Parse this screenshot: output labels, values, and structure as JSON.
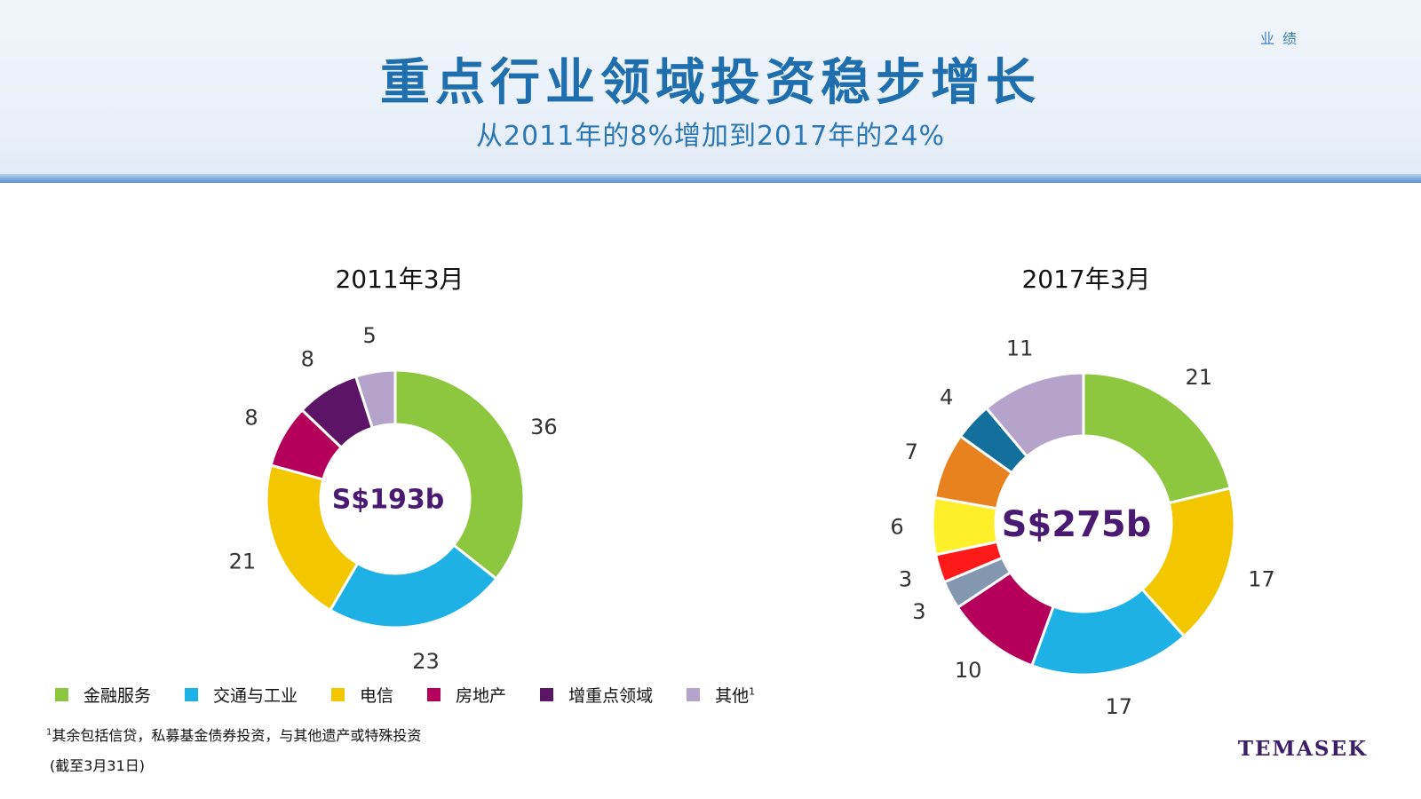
{
  "header": {
    "section_tag": "业 绩",
    "title": "重点行业领域投资稳步增长",
    "subtitle": "从2011年的8%增加到2017年的24%"
  },
  "chart_data": [
    {
      "type": "pie",
      "title": "2011年3月",
      "center_label": "S$193b",
      "categories": [
        "金融服务",
        "交通与工业",
        "电信",
        "房地产",
        "增重点领域",
        "其他"
      ],
      "values": [
        36,
        23,
        21,
        8,
        8,
        5
      ],
      "colors": [
        "#8dc63f",
        "#1eb1e6",
        "#f2c700",
        "#b5005b",
        "#5c1467",
        "#b5a3cb"
      ]
    },
    {
      "type": "pie",
      "title": "2017年3月",
      "center_label": "S$275b",
      "values": [
        21,
        17,
        17,
        10,
        3,
        3,
        6,
        7,
        4,
        11
      ],
      "colors": [
        "#8dc63f",
        "#f2c700",
        "#1eb1e6",
        "#b5005b",
        "#8497b0",
        "#ff1a1a",
        "#ffef2a",
        "#e8821e",
        "#13709d",
        "#b5a3cb"
      ]
    }
  ],
  "legend": [
    {
      "label": "金融服务",
      "color": "#8dc63f",
      "sup": ""
    },
    {
      "label": "交通与工业",
      "color": "#1eb1e6",
      "sup": ""
    },
    {
      "label": "电信",
      "color": "#f2c700",
      "sup": ""
    },
    {
      "label": "房地产",
      "color": "#b5005b",
      "sup": ""
    },
    {
      "label": "增重点领域",
      "color": "#5c1467",
      "sup": ""
    },
    {
      "label": "其他",
      "color": "#b5a3cb",
      "sup": "1"
    }
  ],
  "footnote": {
    "marker": "1",
    "text": "其余包括信贷，私募基金债券投资，与其他遗产或特殊投资"
  },
  "date_note": "(截至3月31日)",
  "brand": "TEMASEK"
}
